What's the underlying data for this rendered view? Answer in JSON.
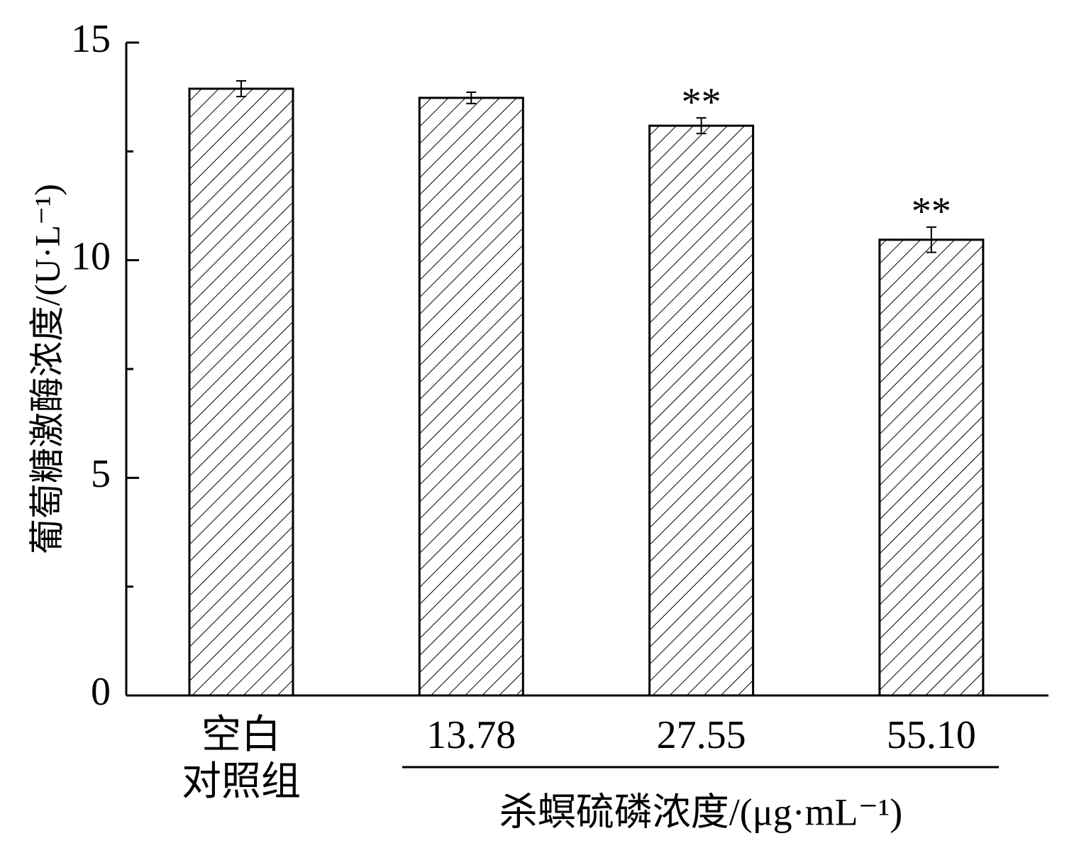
{
  "chart_data": {
    "type": "bar",
    "y_label": "葡萄糖激酶浓度/(U·L⁻¹)",
    "x_label": "杀螟硫磷浓度/(μg·mL⁻¹)",
    "categories": [
      "空白\n对照组",
      "13.78",
      "27.55",
      "55.10"
    ],
    "values": [
      13.94,
      13.73,
      13.09,
      10.47
    ],
    "errors": [
      0.18,
      0.13,
      0.18,
      0.29
    ],
    "significance": [
      null,
      null,
      "**",
      "**"
    ],
    "color": "#000000",
    "ylim": [
      0,
      15
    ],
    "yticks": [
      0,
      5,
      10,
      15
    ],
    "minor_yticks": [
      2.5,
      7.5,
      12.5
    ]
  }
}
